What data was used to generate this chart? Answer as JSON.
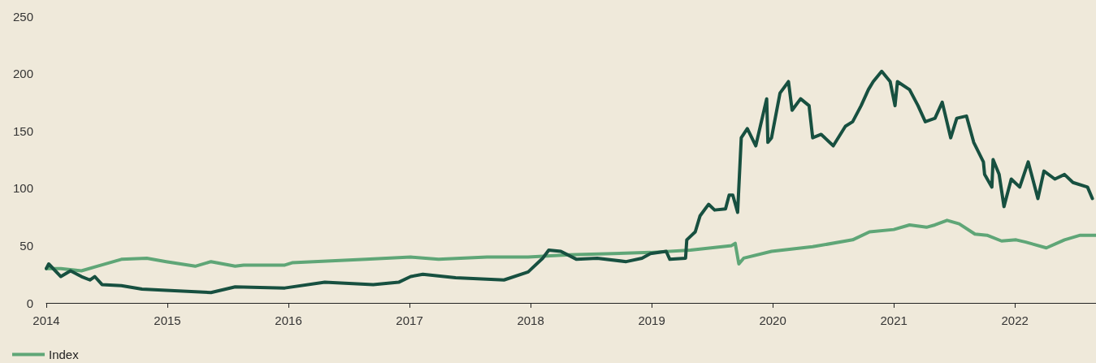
{
  "chart_data": {
    "type": "line",
    "xlim": [
      2014,
      2022.67
    ],
    "xticks": [
      2014,
      2015,
      2016,
      2017,
      2018,
      2019,
      2020,
      2021,
      2022
    ],
    "ylim": [
      0,
      250
    ],
    "yticks": [
      0,
      50,
      100,
      150,
      200,
      250
    ],
    "grid": false,
    "legend": "bottom left",
    "marker": "none",
    "line_style": "solid",
    "series": [
      {
        "name": "Index",
        "color": "#5fa677",
        "x": [
          2014.0,
          2014.12,
          2014.29,
          2014.42,
          2014.62,
          2014.83,
          2014.99,
          2015.23,
          2015.36,
          2015.56,
          2015.63,
          2015.97,
          2016.03,
          2016.64,
          2017.01,
          2017.24,
          2017.64,
          2017.98,
          2018.32,
          2018.99,
          2019.32,
          2019.66,
          2019.69,
          2019.72,
          2019.76,
          2019.99,
          2020.33,
          2020.66,
          2020.8,
          2021.0,
          2021.13,
          2021.27,
          2021.34,
          2021.44,
          2021.54,
          2021.67,
          2021.77,
          2021.89,
          2022.01,
          2022.09,
          2022.26,
          2022.41,
          2022.54,
          2022.67
        ],
        "values": [
          30,
          30,
          28,
          32,
          38,
          39,
          36,
          32,
          36,
          32,
          33,
          33,
          35,
          38,
          40,
          38,
          40,
          40,
          42,
          44,
          46,
          50,
          52,
          34,
          39,
          45,
          49,
          55,
          62,
          64,
          68,
          66,
          68,
          72,
          69,
          60,
          59,
          54,
          55,
          53,
          48,
          55,
          59,
          59
        ]
      },
      {
        "color": "#175040",
        "x": [
          2014.0,
          2014.02,
          2014.12,
          2014.2,
          2014.29,
          2014.36,
          2014.4,
          2014.46,
          2014.62,
          2014.79,
          2014.99,
          2015.36,
          2015.56,
          2015.97,
          2016.3,
          2016.7,
          2016.91,
          2017.01,
          2017.11,
          2017.38,
          2017.78,
          2017.98,
          2018.01,
          2018.1,
          2018.15,
          2018.25,
          2018.38,
          2018.55,
          2018.79,
          2018.92,
          2018.99,
          2019.12,
          2019.15,
          2019.28,
          2019.29,
          2019.36,
          2019.4,
          2019.47,
          2019.52,
          2019.61,
          2019.64,
          2019.67,
          2019.71,
          2019.74,
          2019.79,
          2019.86,
          2019.95,
          2019.96,
          2019.99,
          2020.06,
          2020.13,
          2020.16,
          2020.23,
          2020.3,
          2020.33,
          2020.4,
          2020.5,
          2020.6,
          2020.66,
          2020.73,
          2020.79,
          2020.83,
          2020.9,
          2020.97,
          2021.01,
          2021.03,
          2021.13,
          2021.2,
          2021.26,
          2021.34,
          2021.4,
          2021.47,
          2021.52,
          2021.6,
          2021.66,
          2021.74,
          2021.75,
          2021.81,
          2021.82,
          2021.87,
          2021.91,
          2021.97,
          2022.04,
          2022.11,
          2022.19,
          2022.24,
          2022.33,
          2022.41,
          2022.48,
          2022.6,
          2022.64
        ],
        "values": [
          30,
          34,
          23,
          28,
          23,
          20,
          23,
          16,
          15,
          12,
          11,
          9,
          14,
          13,
          18,
          16,
          18,
          23,
          25,
          22,
          20,
          27,
          30,
          39,
          46,
          45,
          38,
          39,
          36,
          39,
          43,
          45,
          38,
          39,
          55,
          62,
          76,
          86,
          81,
          82,
          94,
          94,
          79,
          144,
          152,
          137,
          178,
          140,
          144,
          183,
          193,
          168,
          178,
          172,
          144,
          147,
          137,
          154,
          158,
          172,
          186,
          193,
          202,
          193,
          172,
          193,
          186,
          172,
          158,
          161,
          175,
          144,
          161,
          163,
          140,
          123,
          112,
          101,
          125,
          112,
          84,
          108,
          101,
          123,
          91,
          115,
          108,
          112,
          105,
          101,
          91
        ]
      }
    ]
  }
}
